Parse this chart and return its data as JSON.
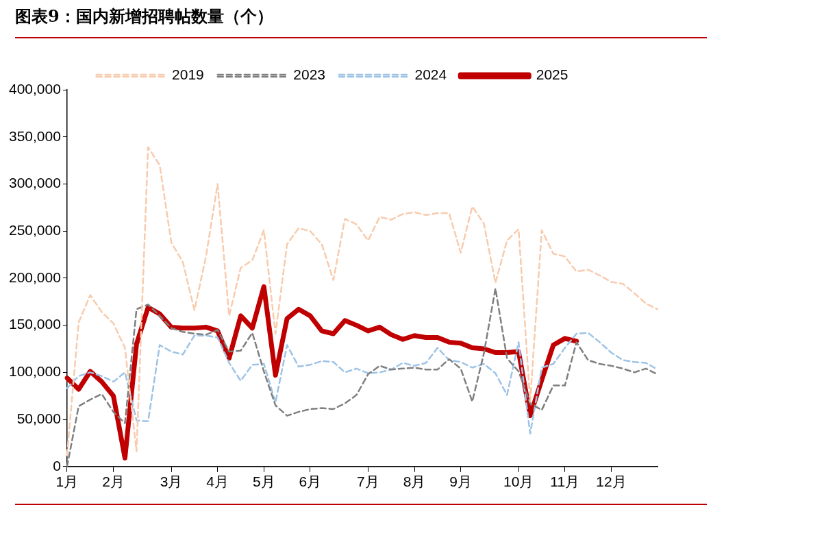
{
  "chart_data": {
    "type": "line",
    "title": "图表9：国内新增招聘帖数量（个）",
    "categories": [
      "1月",
      null,
      null,
      null,
      "2月",
      null,
      null,
      null,
      null,
      "3月",
      null,
      null,
      null,
      "4月",
      null,
      null,
      null,
      "5月",
      null,
      null,
      null,
      "6月",
      null,
      null,
      null,
      null,
      "7月",
      null,
      null,
      null,
      "8月",
      null,
      null,
      null,
      "9月",
      null,
      null,
      null,
      null,
      "10月",
      null,
      null,
      null,
      "11月",
      null,
      null,
      null,
      "12月",
      null,
      null,
      null,
      null
    ],
    "ylim": [
      0,
      400000
    ],
    "yticks": [
      {
        "value": 0,
        "label": "0"
      },
      {
        "value": 50000,
        "label": "50,000"
      },
      {
        "value": 100000,
        "label": "100,000"
      },
      {
        "value": 150000,
        "label": "150,000"
      },
      {
        "value": 200000,
        "label": "200,000"
      },
      {
        "value": 250000,
        "label": "250,000"
      },
      {
        "value": 300000,
        "label": "300,000"
      },
      {
        "value": 350000,
        "label": "350,000"
      },
      {
        "value": 400000,
        "label": "400,000"
      }
    ],
    "grid": false,
    "legend": "top",
    "marker": "none",
    "series": [
      {
        "name": "2019",
        "color": "#f8cbad",
        "line_style": "dashed",
        "values": [
          12000,
          153000,
          182000,
          164000,
          152000,
          126000,
          16000,
          339000,
          320000,
          238000,
          217000,
          166000,
          223000,
          300000,
          160000,
          211000,
          219000,
          251000,
          141000,
          236000,
          253000,
          250000,
          236000,
          198000,
          263000,
          257000,
          240000,
          265000,
          262000,
          268000,
          270000,
          267000,
          269000,
          269000,
          227000,
          276000,
          258000,
          195000,
          240000,
          252000,
          69000,
          251000,
          226000,
          223000,
          207000,
          209000,
          203000,
          196000,
          194000,
          184000,
          173000,
          167000
        ]
      },
      {
        "name": "2023",
        "color": "#7f7f7f",
        "line_style": "dashed",
        "values": [
          0,
          64000,
          71000,
          77000,
          58000,
          46000,
          167000,
          172000,
          160000,
          147000,
          143000,
          141000,
          140000,
          145000,
          122000,
          123000,
          142000,
          101000,
          65000,
          54000,
          58000,
          61000,
          62000,
          61000,
          67000,
          76000,
          98000,
          107000,
          103000,
          104000,
          105000,
          103000,
          103000,
          114000,
          104000,
          69000,
          120000,
          189000,
          115000,
          101000,
          67000,
          60000,
          86000,
          86000,
          132000,
          113000,
          109000,
          107000,
          104000,
          100000,
          104000,
          98000
        ]
      },
      {
        "name": "2024",
        "color": "#9dc3e6",
        "line_style": "dashed",
        "values": [
          83000,
          96000,
          100000,
          96000,
          90000,
          100000,
          49000,
          48000,
          129000,
          122000,
          119000,
          139000,
          139000,
          137000,
          110000,
          91000,
          108000,
          109000,
          68000,
          129000,
          106000,
          108000,
          112000,
          111000,
          100000,
          104000,
          99000,
          100000,
          103000,
          110000,
          107000,
          110000,
          126000,
          113000,
          111000,
          105000,
          109000,
          99000,
          76000,
          132000,
          35000,
          105000,
          109000,
          126000,
          141000,
          142000,
          132000,
          121000,
          113000,
          111000,
          110000,
          103000
        ]
      },
      {
        "name": "2025",
        "color": "#c00000",
        "line_style": "solid",
        "values": [
          94000,
          82000,
          101000,
          90000,
          75000,
          9000,
          130000,
          169000,
          162000,
          148000,
          147000,
          147000,
          148000,
          144000,
          115000,
          160000,
          147000,
          191000,
          97000,
          157000,
          167000,
          160000,
          144000,
          141000,
          155000,
          150000,
          144000,
          148000,
          140000,
          135000,
          139000,
          137000,
          137000,
          132000,
          131000,
          126000,
          125000,
          121000,
          121000,
          122000,
          54000,
          92000,
          129000,
          136000,
          133000,
          null,
          null,
          null,
          null,
          null,
          null,
          null
        ]
      }
    ]
  }
}
